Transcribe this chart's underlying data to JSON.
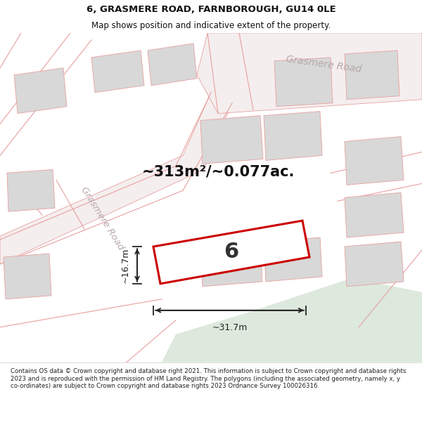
{
  "title": "6, GRASMERE ROAD, FARNBOROUGH, GU14 0LE",
  "subtitle": "Map shows position and indicative extent of the property.",
  "footer": "Contains OS data © Crown copyright and database right 2021. This information is subject to Crown copyright and database rights 2023 and is reproduced with the permission of HM Land Registry. The polygons (including the associated geometry, namely x, y co-ordinates) are subject to Crown copyright and database rights 2023 Ordnance Survey 100026316.",
  "area_text": "~313m²/~0.077ac.",
  "dim_width": "~31.7m",
  "dim_height": "~16.7m",
  "road_label_diag": "Grasmere Road",
  "road_label_top": "Grasmere Road",
  "plot_number": "6",
  "map_bg": "#ffffff",
  "building_fill": "#d8d8d8",
  "building_edge": "#e8a0a0",
  "road_stroke": "#e8a0a0",
  "road_fill": "#f5eeee",
  "plot_stroke": "#cc0000",
  "dim_color": "#222222",
  "title_color": "#111111",
  "footer_color": "#222222",
  "road_label_color": "#b8a8a8",
  "green_color": "#dce9dc",
  "title_fontsize": 9.5,
  "subtitle_fontsize": 8.5,
  "footer_fontsize": 6.2
}
